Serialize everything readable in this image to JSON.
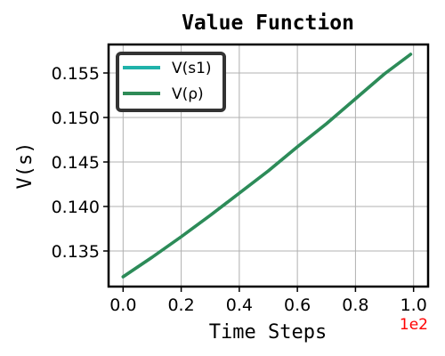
{
  "chart_data": {
    "type": "line",
    "title": "Value Function",
    "xlabel": "Time Steps",
    "ylabel": "V(s)",
    "x_offset_label": "1e2",
    "x_range": [
      -0.05,
      1.05
    ],
    "ylim": [
      0.131,
      0.1582
    ],
    "x_ticks": [
      0.0,
      0.2,
      0.4,
      0.6,
      0.8,
      1.0
    ],
    "x_tick_labels": [
      "0.0",
      "0.2",
      "0.4",
      "0.6",
      "0.8",
      "1.0"
    ],
    "y_ticks": [
      0.135,
      0.14,
      0.145,
      0.15,
      0.155
    ],
    "y_tick_labels": [
      "0.135",
      "0.140",
      "0.145",
      "0.150",
      "0.155"
    ],
    "grid": true,
    "legend_position": "top-left",
    "series": [
      {
        "name": "V(s1)",
        "color": "#20b2aa",
        "x": [
          0.0,
          0.1,
          0.2,
          0.3,
          0.4,
          0.5,
          0.6,
          0.7,
          0.8,
          0.9,
          0.99
        ],
        "values": [
          0.1321,
          0.1343,
          0.1366,
          0.139,
          0.1415,
          0.144,
          0.1467,
          0.1493,
          0.1521,
          0.1549,
          0.1571
        ]
      },
      {
        "name": "V(ρ)",
        "color": "#2e8b57",
        "x": [
          0.0,
          0.1,
          0.2,
          0.3,
          0.4,
          0.5,
          0.6,
          0.7,
          0.8,
          0.9,
          0.99
        ],
        "values": [
          0.1321,
          0.1343,
          0.1366,
          0.139,
          0.1415,
          0.144,
          0.1467,
          0.1493,
          0.1521,
          0.1549,
          0.1571
        ]
      }
    ],
    "colors": {
      "offset_label": "#ff0000",
      "grid": "#b0b0b0",
      "legend_border": "#333333"
    }
  }
}
